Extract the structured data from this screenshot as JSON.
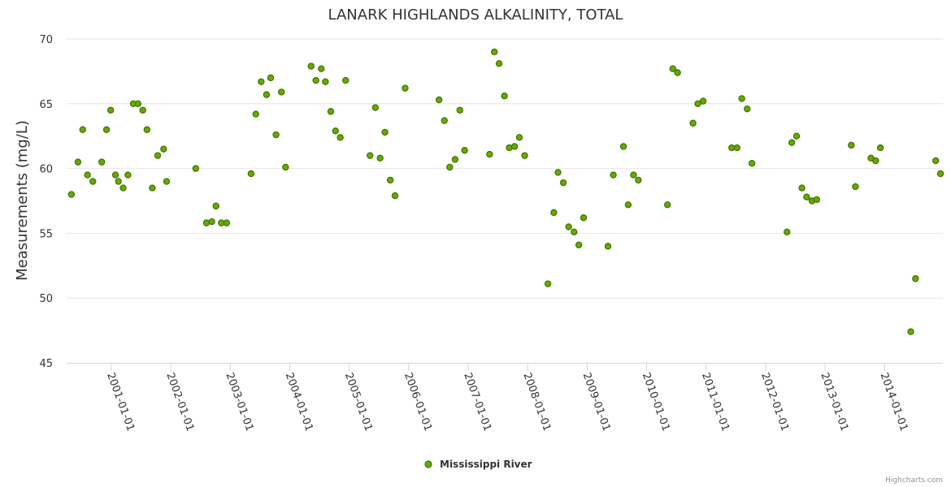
{
  "credits": "Highcharts.com",
  "colors": {
    "marker_fill": "#6aa800",
    "marker_stroke": "#3b7400"
  },
  "chart_data": {
    "type": "scatter",
    "title": "LANARK HIGHLANDS ALKALINITY, TOTAL",
    "xlabel": "",
    "ylabel": "Measurements (mg/L)",
    "ylim": [
      45,
      70
    ],
    "yticks": [
      45,
      50,
      55,
      60,
      65,
      70
    ],
    "xlim": [
      2000.25,
      2014.98
    ],
    "xticks": [
      {
        "value": 2001,
        "label": "2001-01-01"
      },
      {
        "value": 2002,
        "label": "2002-01-01"
      },
      {
        "value": 2003,
        "label": "2003-01-01"
      },
      {
        "value": 2004,
        "label": "2004-01-01"
      },
      {
        "value": 2005,
        "label": "2005-01-01"
      },
      {
        "value": 2006,
        "label": "2006-01-01"
      },
      {
        "value": 2007,
        "label": "2007-01-01"
      },
      {
        "value": 2008,
        "label": "2008-01-01"
      },
      {
        "value": 2009,
        "label": "2009-01-01"
      },
      {
        "value": 2010,
        "label": "2010-01-01"
      },
      {
        "value": 2011,
        "label": "2011-01-01"
      },
      {
        "value": 2012,
        "label": "2012-01-01"
      },
      {
        "value": 2013,
        "label": "2013-01-01"
      },
      {
        "value": 2014,
        "label": "2014-01-01"
      }
    ],
    "legend": "bottom-center",
    "series": [
      {
        "name": "Mississippi River",
        "points": [
          [
            2000.33,
            58.0
          ],
          [
            2000.44,
            60.5
          ],
          [
            2000.52,
            63.0
          ],
          [
            2000.6,
            59.5
          ],
          [
            2000.69,
            59.0
          ],
          [
            2000.84,
            60.5
          ],
          [
            2000.92,
            63.0
          ],
          [
            2000.99,
            64.5
          ],
          [
            2001.07,
            59.5
          ],
          [
            2001.12,
            59.0
          ],
          [
            2001.2,
            58.5
          ],
          [
            2001.28,
            59.5
          ],
          [
            2001.37,
            65.0
          ],
          [
            2001.45,
            65.0
          ],
          [
            2001.53,
            64.5
          ],
          [
            2001.6,
            63.0
          ],
          [
            2001.69,
            58.5
          ],
          [
            2001.78,
            61.0
          ],
          [
            2001.88,
            61.5
          ],
          [
            2001.93,
            59.0
          ],
          [
            2002.42,
            60.0
          ],
          [
            2002.6,
            55.8
          ],
          [
            2002.69,
            55.9
          ],
          [
            2002.76,
            57.1
          ],
          [
            2002.85,
            55.8
          ],
          [
            2002.94,
            55.8
          ],
          [
            2003.35,
            59.6
          ],
          [
            2003.43,
            64.2
          ],
          [
            2003.52,
            66.7
          ],
          [
            2003.61,
            65.7
          ],
          [
            2003.68,
            67.0
          ],
          [
            2003.77,
            62.6
          ],
          [
            2003.86,
            65.9
          ],
          [
            2003.93,
            60.1
          ],
          [
            2004.36,
            67.9
          ],
          [
            2004.44,
            66.8
          ],
          [
            2004.53,
            67.7
          ],
          [
            2004.6,
            66.7
          ],
          [
            2004.69,
            64.4
          ],
          [
            2004.77,
            62.9
          ],
          [
            2004.85,
            62.4
          ],
          [
            2004.94,
            66.8
          ],
          [
            2005.35,
            61.0
          ],
          [
            2005.44,
            64.7
          ],
          [
            2005.52,
            60.8
          ],
          [
            2005.6,
            62.8
          ],
          [
            2005.69,
            59.1
          ],
          [
            2005.77,
            57.9
          ],
          [
            2005.94,
            66.2
          ],
          [
            2006.51,
            65.3
          ],
          [
            2006.6,
            63.7
          ],
          [
            2006.69,
            60.1
          ],
          [
            2006.78,
            60.7
          ],
          [
            2006.86,
            64.5
          ],
          [
            2006.94,
            61.4
          ],
          [
            2007.36,
            61.1
          ],
          [
            2007.44,
            69.0
          ],
          [
            2007.52,
            68.1
          ],
          [
            2007.61,
            65.6
          ],
          [
            2007.69,
            61.6
          ],
          [
            2007.78,
            61.7
          ],
          [
            2007.86,
            62.4
          ],
          [
            2007.95,
            61.0
          ],
          [
            2008.34,
            51.1
          ],
          [
            2008.44,
            56.6
          ],
          [
            2008.51,
            59.7
          ],
          [
            2008.6,
            58.9
          ],
          [
            2008.69,
            55.5
          ],
          [
            2008.78,
            55.1
          ],
          [
            2008.86,
            54.1
          ],
          [
            2008.94,
            56.2
          ],
          [
            2009.35,
            54.0
          ],
          [
            2009.44,
            59.5
          ],
          [
            2009.61,
            61.7
          ],
          [
            2009.69,
            57.2
          ],
          [
            2009.78,
            59.5
          ],
          [
            2009.86,
            59.1
          ],
          [
            2010.35,
            57.2
          ],
          [
            2010.44,
            67.7
          ],
          [
            2010.52,
            67.4
          ],
          [
            2010.78,
            63.5
          ],
          [
            2010.86,
            65.0
          ],
          [
            2010.95,
            65.2
          ],
          [
            2011.43,
            61.6
          ],
          [
            2011.52,
            61.6
          ],
          [
            2011.6,
            65.4
          ],
          [
            2011.69,
            64.6
          ],
          [
            2011.77,
            60.4
          ],
          [
            2012.36,
            55.1
          ],
          [
            2012.44,
            62.0
          ],
          [
            2012.52,
            62.5
          ],
          [
            2012.61,
            58.5
          ],
          [
            2012.69,
            57.8
          ],
          [
            2012.78,
            57.5
          ],
          [
            2012.86,
            57.6
          ],
          [
            2013.44,
            61.8
          ],
          [
            2013.51,
            58.6
          ],
          [
            2013.77,
            60.8
          ],
          [
            2013.85,
            60.6
          ],
          [
            2013.93,
            61.6
          ],
          [
            2014.44,
            47.4
          ],
          [
            2014.52,
            51.5
          ],
          [
            2014.86,
            60.6
          ],
          [
            2014.94,
            59.6
          ]
        ]
      }
    ]
  }
}
